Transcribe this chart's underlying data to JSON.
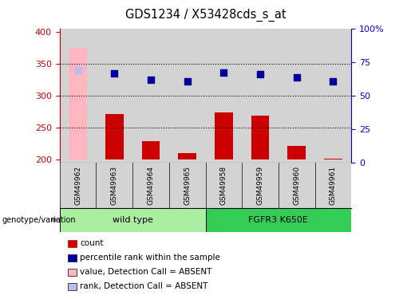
{
  "title": "GDS1234 / X53428cds_s_at",
  "samples": [
    "GSM49962",
    "GSM49963",
    "GSM49964",
    "GSM49965",
    "GSM49958",
    "GSM49959",
    "GSM49960",
    "GSM49961"
  ],
  "bar_values": [
    375,
    271,
    229,
    211,
    274,
    269,
    221,
    202
  ],
  "bar_colors": [
    "#ffb6c1",
    "#cc0000",
    "#cc0000",
    "#cc0000",
    "#cc0000",
    "#cc0000",
    "#cc0000",
    "#cc0000"
  ],
  "dot_values": [
    340,
    335,
    325,
    322,
    336,
    334,
    329,
    323
  ],
  "dot_colors": [
    "#bbbbee",
    "#000099",
    "#000099",
    "#000099",
    "#000099",
    "#000099",
    "#000099",
    "#000099"
  ],
  "ylim_left": [
    195,
    405
  ],
  "ylim_right": [
    0,
    100
  ],
  "yticks_left": [
    200,
    250,
    300,
    350,
    400
  ],
  "yticks_right": [
    0,
    25,
    50,
    75,
    100
  ],
  "ytick_labels_right": [
    "0",
    "25",
    "50",
    "75",
    "100%"
  ],
  "hlines": [
    250,
    300,
    350
  ],
  "group1_label": "wild type",
  "group2_label": "FGFR3 K650E",
  "group1_indices": [
    0,
    1,
    2,
    3
  ],
  "group2_indices": [
    4,
    5,
    6,
    7
  ],
  "group1_color": "#aaeea0",
  "group2_color": "#33cc55",
  "genotype_label": "genotype/variation",
  "legend_items": [
    {
      "label": "count",
      "color": "#cc0000"
    },
    {
      "label": "percentile rank within the sample",
      "color": "#000099"
    },
    {
      "label": "value, Detection Call = ABSENT",
      "color": "#ffb6c1"
    },
    {
      "label": "rank, Detection Call = ABSENT",
      "color": "#bbbbee"
    }
  ],
  "bar_width": 0.5,
  "dot_size": 40,
  "left_axis_color": "#cc0000",
  "right_axis_color": "#0000cc",
  "background_col": "#d3d3d3",
  "plot_bg": "#ffffff"
}
